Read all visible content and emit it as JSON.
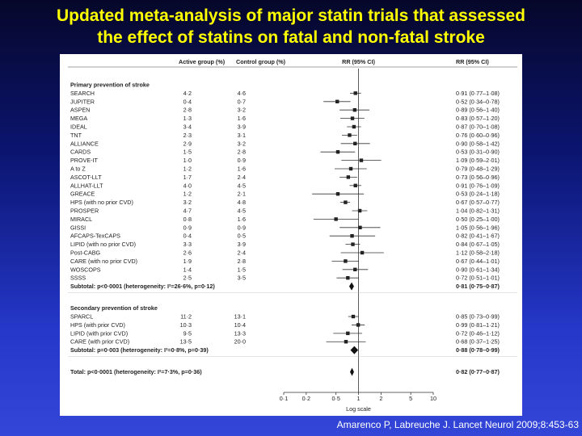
{
  "slide": {
    "title_line1": "Updated meta-analysis of major statin trials that assessed",
    "title_line2": "the effect of statins on fatal and non-fatal stroke",
    "citation": "Amarenco P, Labreuche J. Lancet Neurol 2009;8:453-63"
  },
  "chart_data": {
    "type": "forest",
    "headers": {
      "active": "Active group (%)",
      "control": "Control group (%)",
      "rr_plot": "RR (95% CI)",
      "rr_text": "RR (95% CI)"
    },
    "x_scale": "log",
    "xlim": [
      0.1,
      10
    ],
    "reference_line": 1,
    "xticks": [
      "0·1",
      "0·2",
      "0·5",
      "1",
      "2",
      "5",
      "10"
    ],
    "xtick_values": [
      0.1,
      0.2,
      0.5,
      1,
      2,
      5,
      10
    ],
    "xlabel": "Log scale",
    "sections": [
      {
        "heading": "Primary prevention of stroke",
        "studies": [
          {
            "name": "SEARCH",
            "active": "4·2",
            "control": "4·6",
            "rr": 0.91,
            "lo": 0.77,
            "hi": 1.08,
            "rr_text": "0·91 (0·77–1·08)"
          },
          {
            "name": "JUPITER",
            "active": "0·4",
            "control": "0·7",
            "rr": 0.52,
            "lo": 0.34,
            "hi": 0.78,
            "rr_text": "0·52 (0·34–0·78)"
          },
          {
            "name": "ASPEN",
            "active": "2·8",
            "control": "3·2",
            "rr": 0.89,
            "lo": 0.56,
            "hi": 1.4,
            "rr_text": "0·89 (0·56–1·40)"
          },
          {
            "name": "MEGA",
            "active": "1·3",
            "control": "1·6",
            "rr": 0.83,
            "lo": 0.57,
            "hi": 1.2,
            "rr_text": "0·83 (0·57–1·20)"
          },
          {
            "name": "IDEAL",
            "active": "3·4",
            "control": "3·9",
            "rr": 0.87,
            "lo": 0.7,
            "hi": 1.08,
            "rr_text": "0·87 (0·70–1·08)"
          },
          {
            "name": "TNT",
            "active": "2·3",
            "control": "3·1",
            "rr": 0.76,
            "lo": 0.6,
            "hi": 0.96,
            "rr_text": "0·76 (0·60–0·96)"
          },
          {
            "name": "ALLIANCE",
            "active": "2·9",
            "control": "3·2",
            "rr": 0.9,
            "lo": 0.58,
            "hi": 1.42,
            "rr_text": "0·90 (0·58–1·42)"
          },
          {
            "name": "CARDS",
            "active": "1·5",
            "control": "2·8",
            "rr": 0.53,
            "lo": 0.31,
            "hi": 0.9,
            "rr_text": "0·53 (0·31–0·90)"
          },
          {
            "name": "PROVE-IT",
            "active": "1·0",
            "control": "0·9",
            "rr": 1.09,
            "lo": 0.59,
            "hi": 2.01,
            "rr_text": "1·09 (0·59–2·01)"
          },
          {
            "name": "A to Z",
            "active": "1·2",
            "control": "1·6",
            "rr": 0.79,
            "lo": 0.48,
            "hi": 1.29,
            "rr_text": "0·79 (0·48–1·29)"
          },
          {
            "name": "ASCOT-LLT",
            "active": "1·7",
            "control": "2·4",
            "rr": 0.73,
            "lo": 0.56,
            "hi": 0.96,
            "rr_text": "0·73 (0·56–0·96)"
          },
          {
            "name": "ALLHAT-LLT",
            "active": "4·0",
            "control": "4·5",
            "rr": 0.91,
            "lo": 0.76,
            "hi": 1.09,
            "rr_text": "0·91 (0·76–1·09)"
          },
          {
            "name": "GREACE",
            "active": "1·2",
            "control": "2·1",
            "rr": 0.53,
            "lo": 0.24,
            "hi": 1.18,
            "rr_text": "0·53 (0·24–1·18)"
          },
          {
            "name": "HPS (with no prior CVD)",
            "active": "3·2",
            "control": "4·8",
            "rr": 0.67,
            "lo": 0.57,
            "hi": 0.77,
            "rr_text": "0·67 (0·57–0·77)"
          },
          {
            "name": "PROSPER",
            "active": "4·7",
            "control": "4·5",
            "rr": 1.04,
            "lo": 0.82,
            "hi": 1.31,
            "rr_text": "1·04 (0·82–1·31)"
          },
          {
            "name": "MIRACL",
            "active": "0·8",
            "control": "1·6",
            "rr": 0.5,
            "lo": 0.25,
            "hi": 1.0,
            "rr_text": "0·50 (0·25–1·00)"
          },
          {
            "name": "GISSI",
            "active": "0·9",
            "control": "0·9",
            "rr": 1.05,
            "lo": 0.56,
            "hi": 1.96,
            "rr_text": "1·05 (0·56–1·96)"
          },
          {
            "name": "AFCAPS-TexCAPS",
            "active": "0·4",
            "control": "0·5",
            "rr": 0.82,
            "lo": 0.41,
            "hi": 1.67,
            "rr_text": "0·82 (0·41–1·67)"
          },
          {
            "name": "LIPID (with no prior CVD)",
            "active": "3·3",
            "control": "3·9",
            "rr": 0.84,
            "lo": 0.67,
            "hi": 1.05,
            "rr_text": "0·84 (0·67–1·05)"
          },
          {
            "name": "Post-CABG",
            "active": "2·6",
            "control": "2·4",
            "rr": 1.12,
            "lo": 0.58,
            "hi": 2.18,
            "rr_text": "1·12 (0·58–2·18)"
          },
          {
            "name": "CARE (with no prior CVD)",
            "active": "1·9",
            "control": "2·8",
            "rr": 0.67,
            "lo": 0.44,
            "hi": 1.01,
            "rr_text": "0·67 (0·44–1·01)"
          },
          {
            "name": "WOSCOPS",
            "active": "1·4",
            "control": "1·5",
            "rr": 0.9,
            "lo": 0.61,
            "hi": 1.34,
            "rr_text": "0·90 (0·61–1·34)"
          },
          {
            "name": "SSSS",
            "active": "2·5",
            "control": "3·5",
            "rr": 0.72,
            "lo": 0.51,
            "hi": 1.01,
            "rr_text": "0·72 (0·51–1·01)"
          }
        ],
        "subtotal": {
          "label": "Subtotal: p<0·0001 (heterogeneity: I²=26·6%, p=0·12)",
          "rr": 0.81,
          "lo": 0.75,
          "hi": 0.87,
          "rr_text": "0·81 (0·75–0·87)"
        }
      },
      {
        "heading": "Secondary prevention of stroke",
        "studies": [
          {
            "name": "SPARCL",
            "active": "11·2",
            "control": "13·1",
            "rr": 0.85,
            "lo": 0.73,
            "hi": 0.99,
            "rr_text": "0·85 (0·73–0·99)"
          },
          {
            "name": "HPS (with prior CVD)",
            "active": "10·3",
            "control": "10·4",
            "rr": 0.99,
            "lo": 0.81,
            "hi": 1.21,
            "rr_text": "0·99 (0·81–1·21)"
          },
          {
            "name": "LIPID (with prior CVD)",
            "active": "9·5",
            "control": "13·3",
            "rr": 0.72,
            "lo": 0.46,
            "hi": 1.12,
            "rr_text": "0·72 (0·46–1·12)"
          },
          {
            "name": "CARE (with prior CVD)",
            "active": "13·5",
            "control": "20·0",
            "rr": 0.68,
            "lo": 0.37,
            "hi": 1.25,
            "rr_text": "0·68 (0·37–1·25)"
          }
        ],
        "subtotal": {
          "label": "Subtotal: p=0·003 (heterogeneity: I²=0·8%, p=0·39)",
          "rr": 0.88,
          "lo": 0.78,
          "hi": 0.99,
          "rr_text": "0·88 (0·78–0·99)"
        }
      }
    ],
    "total": {
      "label": "Total: p<0·0001 (heterogeneity: I²=7·3%, p=0·36)",
      "rr": 0.82,
      "lo": 0.77,
      "hi": 0.87,
      "rr_text": "0·82 (0·77–0·87)"
    }
  }
}
